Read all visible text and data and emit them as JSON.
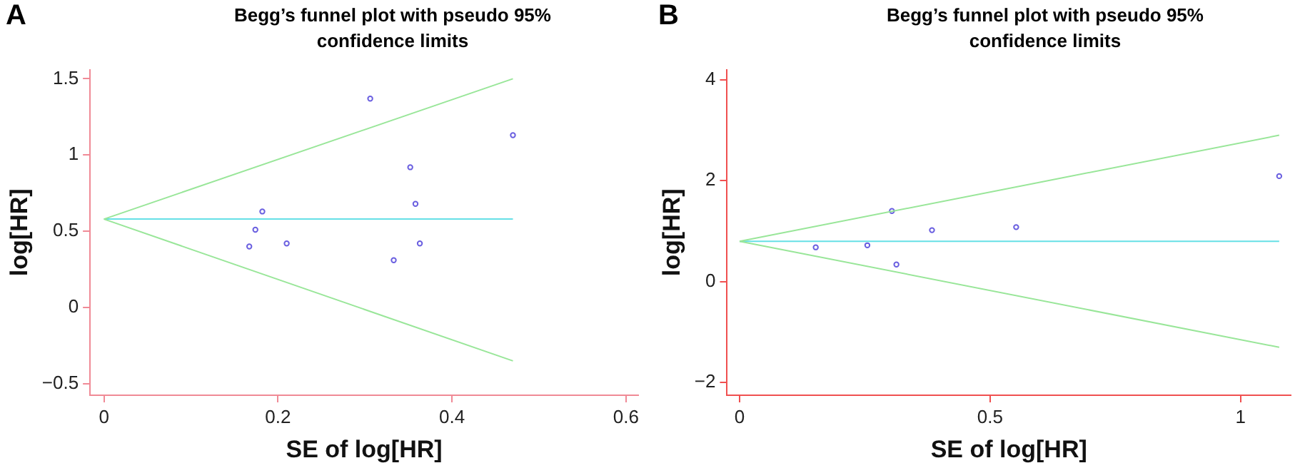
{
  "chart_data": [
    {
      "type": "scatter",
      "title": "Begg’s funnel plot with pseudo 95% confidence limits",
      "xlabel": "SE of log[HR]",
      "ylabel": "log[HR]",
      "annotations": [
        "A"
      ],
      "xlim": [
        -0.016,
        0.614
      ],
      "ylim": [
        -0.575,
        1.56
      ],
      "xticks": [
        0,
        0.2,
        0.4,
        0.6
      ],
      "yticks": [
        {
          "value": -0.5,
          "label": "−0.5"
        },
        0,
        0.5,
        1,
        1.5
      ],
      "grid": false,
      "legend": false,
      "series": [
        {
          "type": "line",
          "color": "#99e699",
          "x": [
            0,
            0.47
          ],
          "values": [
            0.58,
            1.5
          ],
          "marker": "none"
        },
        {
          "type": "line",
          "color": "#99e699",
          "x": [
            0,
            0.47
          ],
          "values": [
            0.58,
            -0.35
          ],
          "marker": "none"
        },
        {
          "type": "line",
          "color": "#66e0e6",
          "x": [
            0,
            0.47
          ],
          "values": [
            0.58,
            0.58
          ],
          "marker": "none"
        },
        {
          "color": "#6a5fe0",
          "marker": "circle",
          "x": [
            0.306,
            0.47,
            0.352,
            0.358,
            0.182,
            0.174,
            0.21,
            0.167,
            0.363,
            0.333
          ],
          "values": [
            1.37,
            1.13,
            0.92,
            0.68,
            0.63,
            0.51,
            0.42,
            0.4,
            0.42,
            0.31
          ]
        }
      ]
    },
    {
      "type": "scatter",
      "title": "Begg’s funnel plot with pseudo 95% confidence limits",
      "xlabel": "SE of log[HR]",
      "ylabel": "log[HR]",
      "annotations": [
        "B"
      ],
      "xlim": [
        -0.025,
        1.1
      ],
      "ylim": [
        -2.25,
        4.2
      ],
      "xticks": [
        0,
        0.5,
        1
      ],
      "yticks": [
        {
          "value": -2,
          "label": "−2"
        },
        0,
        2,
        4
      ],
      "grid": false,
      "legend": false,
      "series": [
        {
          "type": "line",
          "color": "#99e699",
          "x": [
            0,
            1.077
          ],
          "values": [
            0.8,
            2.9
          ],
          "marker": "none"
        },
        {
          "type": "line",
          "color": "#99e699",
          "x": [
            0,
            1.077
          ],
          "values": [
            0.8,
            -1.3
          ],
          "marker": "none"
        },
        {
          "type": "line",
          "color": "#66e0e6",
          "x": [
            0,
            1.077
          ],
          "values": [
            0.8,
            0.8
          ],
          "marker": "none"
        },
        {
          "color": "#6a5fe0",
          "marker": "circle",
          "x": [
            0.152,
            0.255,
            0.304,
            0.313,
            0.384,
            0.552,
            1.077
          ],
          "values": [
            0.68,
            0.72,
            1.4,
            0.34,
            1.02,
            1.08,
            2.09
          ]
        }
      ]
    }
  ]
}
